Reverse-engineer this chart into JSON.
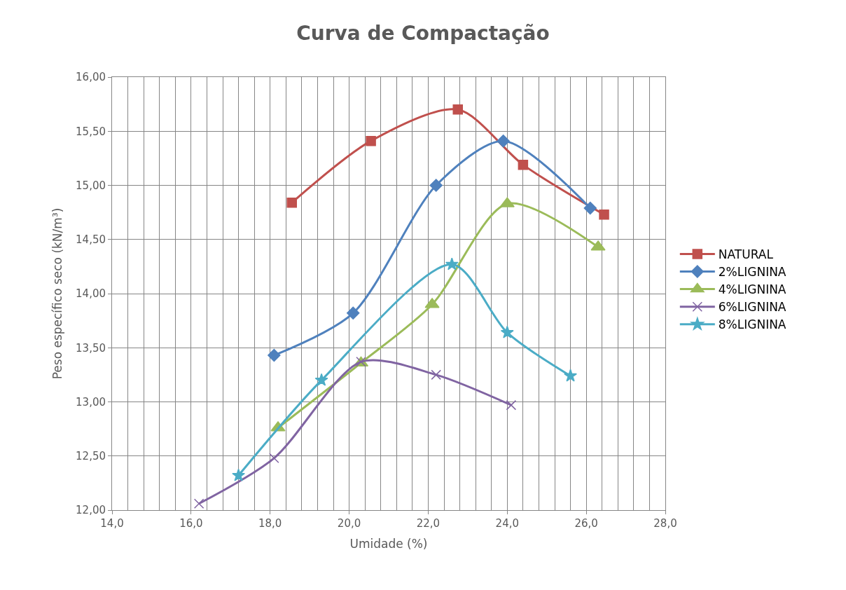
{
  "chart_data": {
    "type": "line",
    "title": "Curva de Compactação",
    "xlabel": "Umidade (%)",
    "ylabel": "Peso específico seco (kN/m³)",
    "series": [
      {
        "name": "NATURAL",
        "color": "#c0504d",
        "marker": "square",
        "x": [
          18.55,
          20.55,
          22.75,
          24.4,
          26.45
        ],
        "values": [
          14.84,
          15.41,
          15.7,
          15.19,
          14.73
        ]
      },
      {
        "name": "2%LIGNINA",
        "color": "#4f81bd",
        "marker": "diamond",
        "x": [
          18.1,
          20.1,
          22.2,
          23.9,
          26.1
        ],
        "values": [
          13.43,
          13.82,
          15.0,
          15.41,
          14.79
        ]
      },
      {
        "name": "4%LIGNINA",
        "color": "#9bbb59",
        "marker": "triangle",
        "x": [
          18.2,
          20.3,
          22.1,
          24.0,
          26.3
        ],
        "values": [
          12.76,
          13.36,
          13.9,
          14.83,
          14.43
        ]
      },
      {
        "name": "6%LIGNINA",
        "color": "#8064a2",
        "marker": "cross",
        "x": [
          16.2,
          18.1,
          20.3,
          22.2,
          24.1
        ],
        "values": [
          12.06,
          12.48,
          13.37,
          13.25,
          12.97
        ]
      },
      {
        "name": "8%LIGNINA",
        "color": "#4bacc6",
        "marker": "star",
        "x": [
          17.2,
          19.3,
          22.6,
          24.0,
          25.6
        ],
        "values": [
          12.32,
          13.2,
          14.27,
          13.64,
          13.24
        ]
      }
    ],
    "xlim": [
      14,
      28
    ],
    "ylim": [
      12,
      16
    ],
    "xticks": [
      {
        "value": 14,
        "label": "14,0"
      },
      {
        "value": 16,
        "label": "16,0"
      },
      {
        "value": 18,
        "label": "18,0"
      },
      {
        "value": 20,
        "label": "20,0"
      },
      {
        "value": 22,
        "label": "22,0"
      },
      {
        "value": 24,
        "label": "24,0"
      },
      {
        "value": 26,
        "label": "26,0"
      },
      {
        "value": 28,
        "label": "28,0"
      }
    ],
    "yticks": [
      {
        "value": 12,
        "label": "12,00"
      },
      {
        "value": 12.5,
        "label": "12,50"
      },
      {
        "value": 13,
        "label": "13,00"
      },
      {
        "value": 13.5,
        "label": "13,50"
      },
      {
        "value": 14,
        "label": "14,00"
      },
      {
        "value": 14.5,
        "label": "14,50"
      },
      {
        "value": 15,
        "label": "15,00"
      },
      {
        "value": 15.5,
        "label": "15,50"
      },
      {
        "value": 16,
        "label": "16,00"
      }
    ],
    "grid": true,
    "legend": "right",
    "line_style": "solid"
  }
}
